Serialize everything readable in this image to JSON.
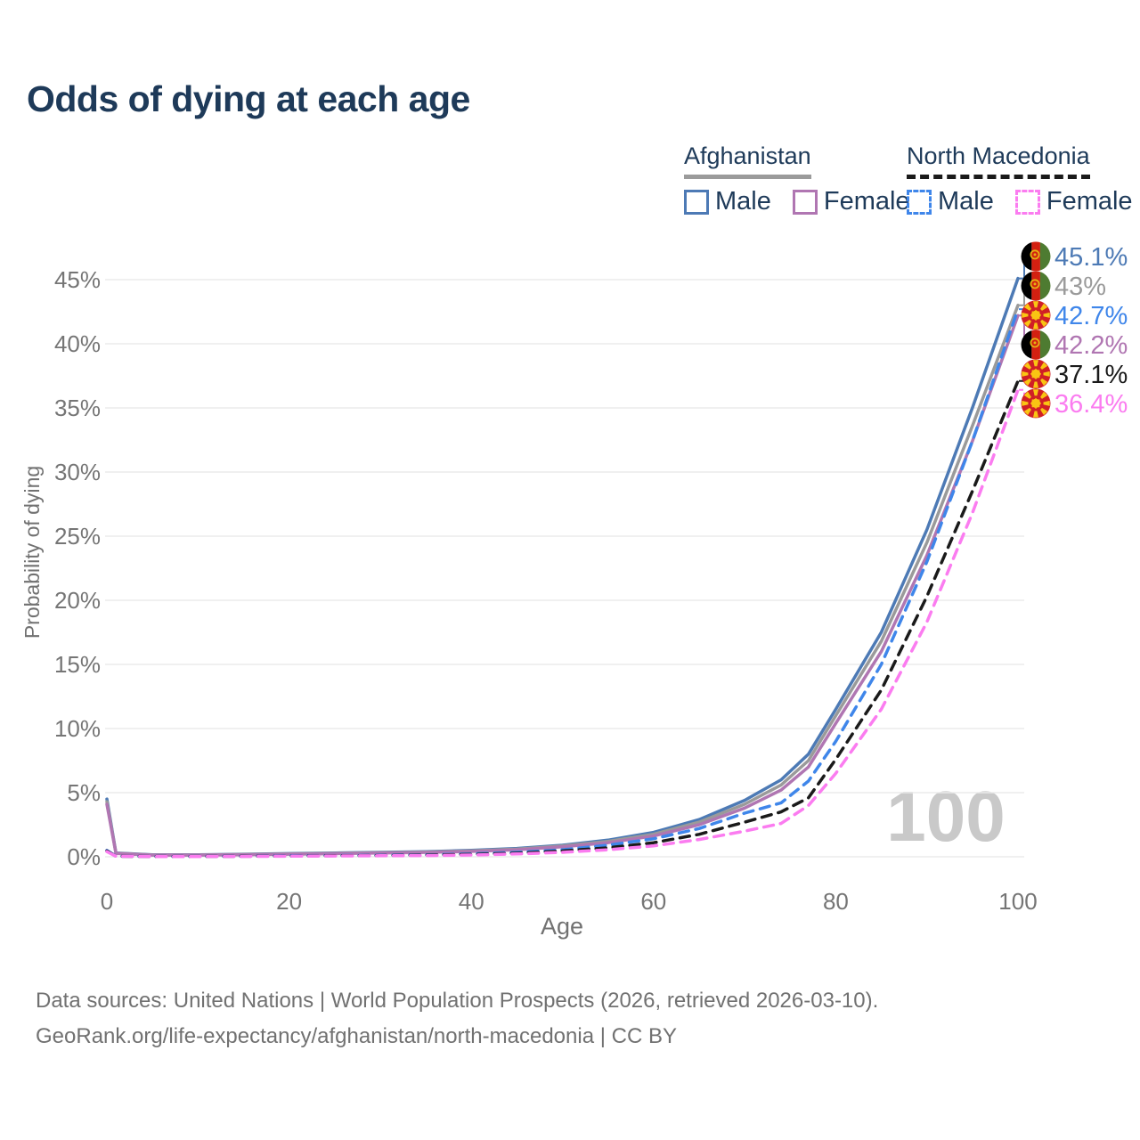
{
  "title": "Odds of dying at each age",
  "legend": {
    "groups": [
      {
        "country": "Afghanistan",
        "underline_style": "solid",
        "underline_color": "#9b9b9b",
        "items": [
          {
            "label": "Male",
            "color": "#4d7ab5",
            "style": "solid"
          },
          {
            "label": "Female",
            "color": "#b076b2",
            "style": "solid"
          }
        ]
      },
      {
        "country": "North Macedonia",
        "underline_style": "dashed",
        "underline_color": "#1a1a1a",
        "items": [
          {
            "label": "Male",
            "color": "#3f86ea",
            "style": "dashed"
          },
          {
            "label": "Female",
            "color": "#fb7cf0",
            "style": "dashed"
          }
        ]
      }
    ]
  },
  "chart_data": {
    "type": "line",
    "title": "Odds of dying at each age",
    "xlabel": "Age",
    "ylabel": "Probability of dying",
    "x_ticks": [
      0,
      20,
      40,
      60,
      80,
      100
    ],
    "y_tick_labels": [
      "0%",
      "5%",
      "10%",
      "15%",
      "20%",
      "25%",
      "30%",
      "35%",
      "40%",
      "45%"
    ],
    "xlim": [
      0,
      100
    ],
    "ylim_percent": [
      0,
      47
    ],
    "grid": "horizontal",
    "legend_position": "top-right",
    "watermark": "100",
    "x": [
      0,
      1,
      5,
      10,
      15,
      20,
      25,
      30,
      35,
      40,
      45,
      50,
      55,
      60,
      65,
      70,
      74,
      77,
      80,
      85,
      90,
      95,
      100
    ],
    "series": [
      {
        "name": "Afghanistan Male",
        "country": "Afghanistan",
        "flag": "af",
        "style": "solid",
        "color": "#4d7ab5",
        "end_label": "45.1%",
        "values": [
          4.5,
          0.3,
          0.15,
          0.15,
          0.2,
          0.25,
          0.3,
          0.35,
          0.4,
          0.5,
          0.65,
          0.9,
          1.3,
          1.9,
          2.9,
          4.4,
          6.0,
          8.0,
          11.5,
          17.5,
          25.5,
          35.0,
          45.1
        ]
      },
      {
        "name": "Afghanistan",
        "country": "Afghanistan",
        "flag": "af",
        "style": "solid",
        "color": "#9a9a9a",
        "end_label": "43%",
        "values": [
          4.3,
          0.28,
          0.14,
          0.14,
          0.18,
          0.22,
          0.27,
          0.32,
          0.37,
          0.46,
          0.6,
          0.84,
          1.2,
          1.76,
          2.7,
          4.1,
          5.6,
          7.5,
          11.0,
          16.8,
          24.5,
          33.6,
          43.0
        ]
      },
      {
        "name": "Afghanistan Female",
        "country": "Afghanistan",
        "flag": "af",
        "style": "solid",
        "color": "#b076b2",
        "end_label": "42.2%",
        "values": [
          4.1,
          0.26,
          0.13,
          0.13,
          0.16,
          0.2,
          0.24,
          0.29,
          0.34,
          0.42,
          0.55,
          0.78,
          1.1,
          1.62,
          2.5,
          3.8,
          5.2,
          7.0,
          10.4,
          16.0,
          23.5,
          32.4,
          42.2
        ]
      },
      {
        "name": "North Macedonia Male",
        "country": "North Macedonia",
        "flag": "mk",
        "style": "dashed",
        "color": "#3f86ea",
        "end_label": "42.7%",
        "values": [
          0.5,
          0.05,
          0.03,
          0.03,
          0.05,
          0.08,
          0.1,
          0.12,
          0.15,
          0.22,
          0.35,
          0.55,
          0.9,
          1.4,
          2.2,
          3.4,
          4.2,
          5.9,
          9.0,
          15.0,
          23.0,
          32.4,
          42.7
        ]
      },
      {
        "name": "North Macedonia",
        "country": "North Macedonia",
        "flag": "mk",
        "style": "dashed",
        "color": "#1a1a1a",
        "end_label": "37.1%",
        "values": [
          0.45,
          0.04,
          0.03,
          0.03,
          0.04,
          0.06,
          0.08,
          0.1,
          0.13,
          0.18,
          0.28,
          0.45,
          0.7,
          1.1,
          1.75,
          2.7,
          3.5,
          4.6,
          7.6,
          13.0,
          20.3,
          28.5,
          37.1
        ]
      },
      {
        "name": "North Macedonia Female",
        "country": "North Macedonia",
        "flag": "mk",
        "style": "dashed",
        "color": "#fb7cf0",
        "end_label": "36.4%",
        "values": [
          0.4,
          0.04,
          0.02,
          0.02,
          0.03,
          0.05,
          0.06,
          0.08,
          0.1,
          0.14,
          0.22,
          0.35,
          0.55,
          0.85,
          1.35,
          2.0,
          2.6,
          4.0,
          6.5,
          11.5,
          18.3,
          26.8,
          36.4
        ]
      }
    ]
  },
  "footer": {
    "line1": "Data sources: United Nations | World Population Prospects (2026, retrieved 2026-03-10).",
    "line2": "GeoRank.org/life-expectancy/afghanistan/north-macedonia | CC BY"
  }
}
